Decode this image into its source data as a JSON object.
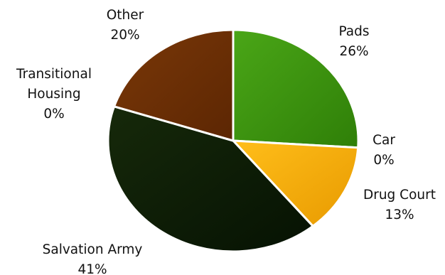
{
  "chart_data": {
    "type": "pie",
    "title": "",
    "start_angle_deg": 0,
    "direction": "clockwise",
    "slices": [
      {
        "name": "Pads",
        "value": 26,
        "label_lines": [
          "Pads",
          "26%"
        ],
        "color": "#3f9a0d"
      },
      {
        "name": "Car",
        "value": 0,
        "label_lines": [
          "Car",
          "0%"
        ],
        "color": "#5a6f00"
      },
      {
        "name": "Drug Court",
        "value": 13,
        "label_lines": [
          "Drug Court",
          "13%"
        ],
        "color": "#f6ab08"
      },
      {
        "name": "Salvation Army",
        "value": 41,
        "label_lines": [
          "Salvation Army",
          "41%"
        ],
        "color": "#0e1f05"
      },
      {
        "name": "Transitional Housing",
        "value": 0,
        "label_lines": [
          "Transitional",
          "Housing",
          "0%"
        ],
        "color": "#4a2a05"
      },
      {
        "name": "Other",
        "value": 20,
        "label_lines": [
          "Other",
          "20%"
        ],
        "color": "#6e2f05"
      }
    ]
  }
}
